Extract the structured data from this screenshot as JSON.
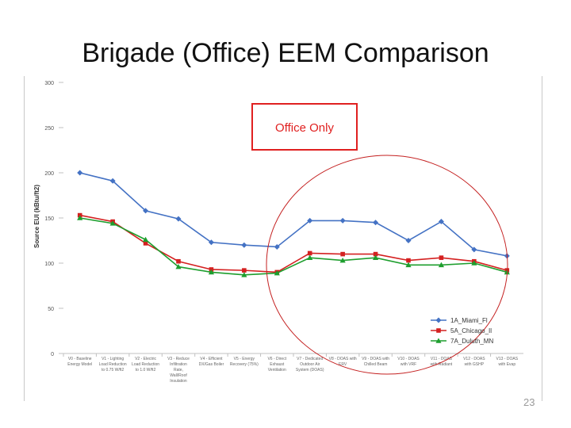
{
  "slide": {
    "title": "Brigade (Office) EEM Comparison",
    "page_number": "23"
  },
  "chart_data": {
    "type": "line",
    "title": "",
    "xlabel": "",
    "ylabel": "Source EUI (kBtu/ft2)",
    "ylim": [
      0,
      300
    ],
    "yticks": [
      0,
      50,
      100,
      150,
      200,
      250,
      300
    ],
    "grid": false,
    "legend_position": "bottom-right",
    "categories": [
      "V0 - Baseline Energy Model",
      "V1 - Lighting Load Reduction to 0.75 W/ft2",
      "V2 - Electric Load Reduction to 1.0 W/ft2",
      "V3 - Reduce Infiltration Rate, Wall/Roof Insulation",
      "V4 - Efficient DX/Gas Boiler",
      "V5 - Energy Recovery (75%)",
      "V6 - Direct Exhaust Ventilation",
      "V7 - Dedicated Outdoor Air System (DOAS)",
      "V8 - DOAS with ERV",
      "V9 - DOAS with Chilled Beam",
      "V10 - DOAS with VRF",
      "V11 - DOAS with Radiant",
      "V12 - DOAS with GSHP",
      "V13 - DOAS with Evap"
    ],
    "series": [
      {
        "name": "1A_Miami_Fl",
        "color": "#4472c4",
        "marker": "diamond",
        "values": [
          200,
          191,
          158,
          149,
          123,
          120,
          118,
          147,
          147,
          145,
          125,
          146,
          115,
          108
        ]
      },
      {
        "name": "5A_Chicago_Il",
        "color": "#d42020",
        "marker": "square",
        "values": [
          153,
          146,
          122,
          102,
          93,
          92,
          90,
          111,
          110,
          110,
          103,
          106,
          102,
          92
        ]
      },
      {
        "name": "7A_Duluth_MN",
        "color": "#1e9e2e",
        "marker": "triangle",
        "values": [
          150,
          144,
          126,
          96,
          90,
          87,
          89,
          106,
          103,
          106,
          98,
          98,
          100,
          90
        ]
      }
    ],
    "annotations": [
      {
        "text": "Office Only",
        "color": "#e02020"
      }
    ]
  }
}
